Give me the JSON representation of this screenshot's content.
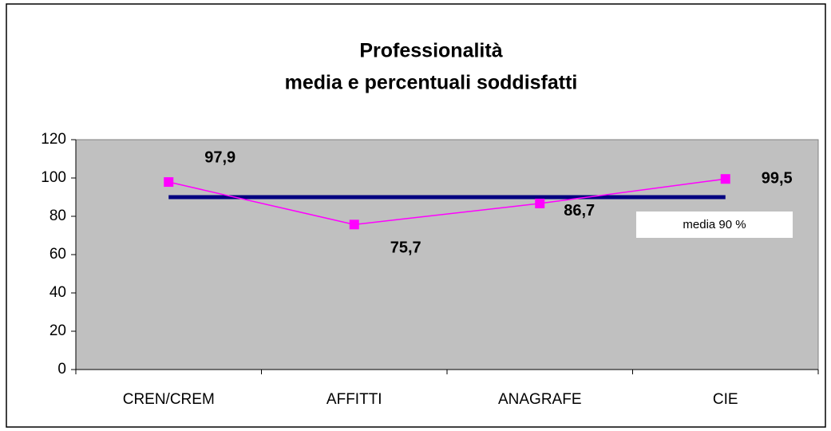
{
  "chart_data": {
    "type": "line",
    "title": [
      "Professionalità",
      "media e percentuali soddisfatti"
    ],
    "categories": [
      "CREN/CREM",
      "AFFITTI",
      "ANAGRAFE",
      "CIE"
    ],
    "series": [
      {
        "color": "#ff00ff",
        "marker": "square",
        "values": [
          97.9,
          75.7,
          86.7,
          99.5
        ],
        "value_labels": [
          "97,9",
          "75,7",
          "86,7",
          "99,5"
        ]
      },
      {
        "color": "#000080",
        "values": [
          90,
          90,
          90,
          90
        ]
      }
    ],
    "annotation": "media 90 %",
    "ylim": [
      0,
      120
    ],
    "yticks": [
      0,
      20,
      40,
      60,
      80,
      100,
      120
    ],
    "plot_background": "#c0c0c0"
  }
}
